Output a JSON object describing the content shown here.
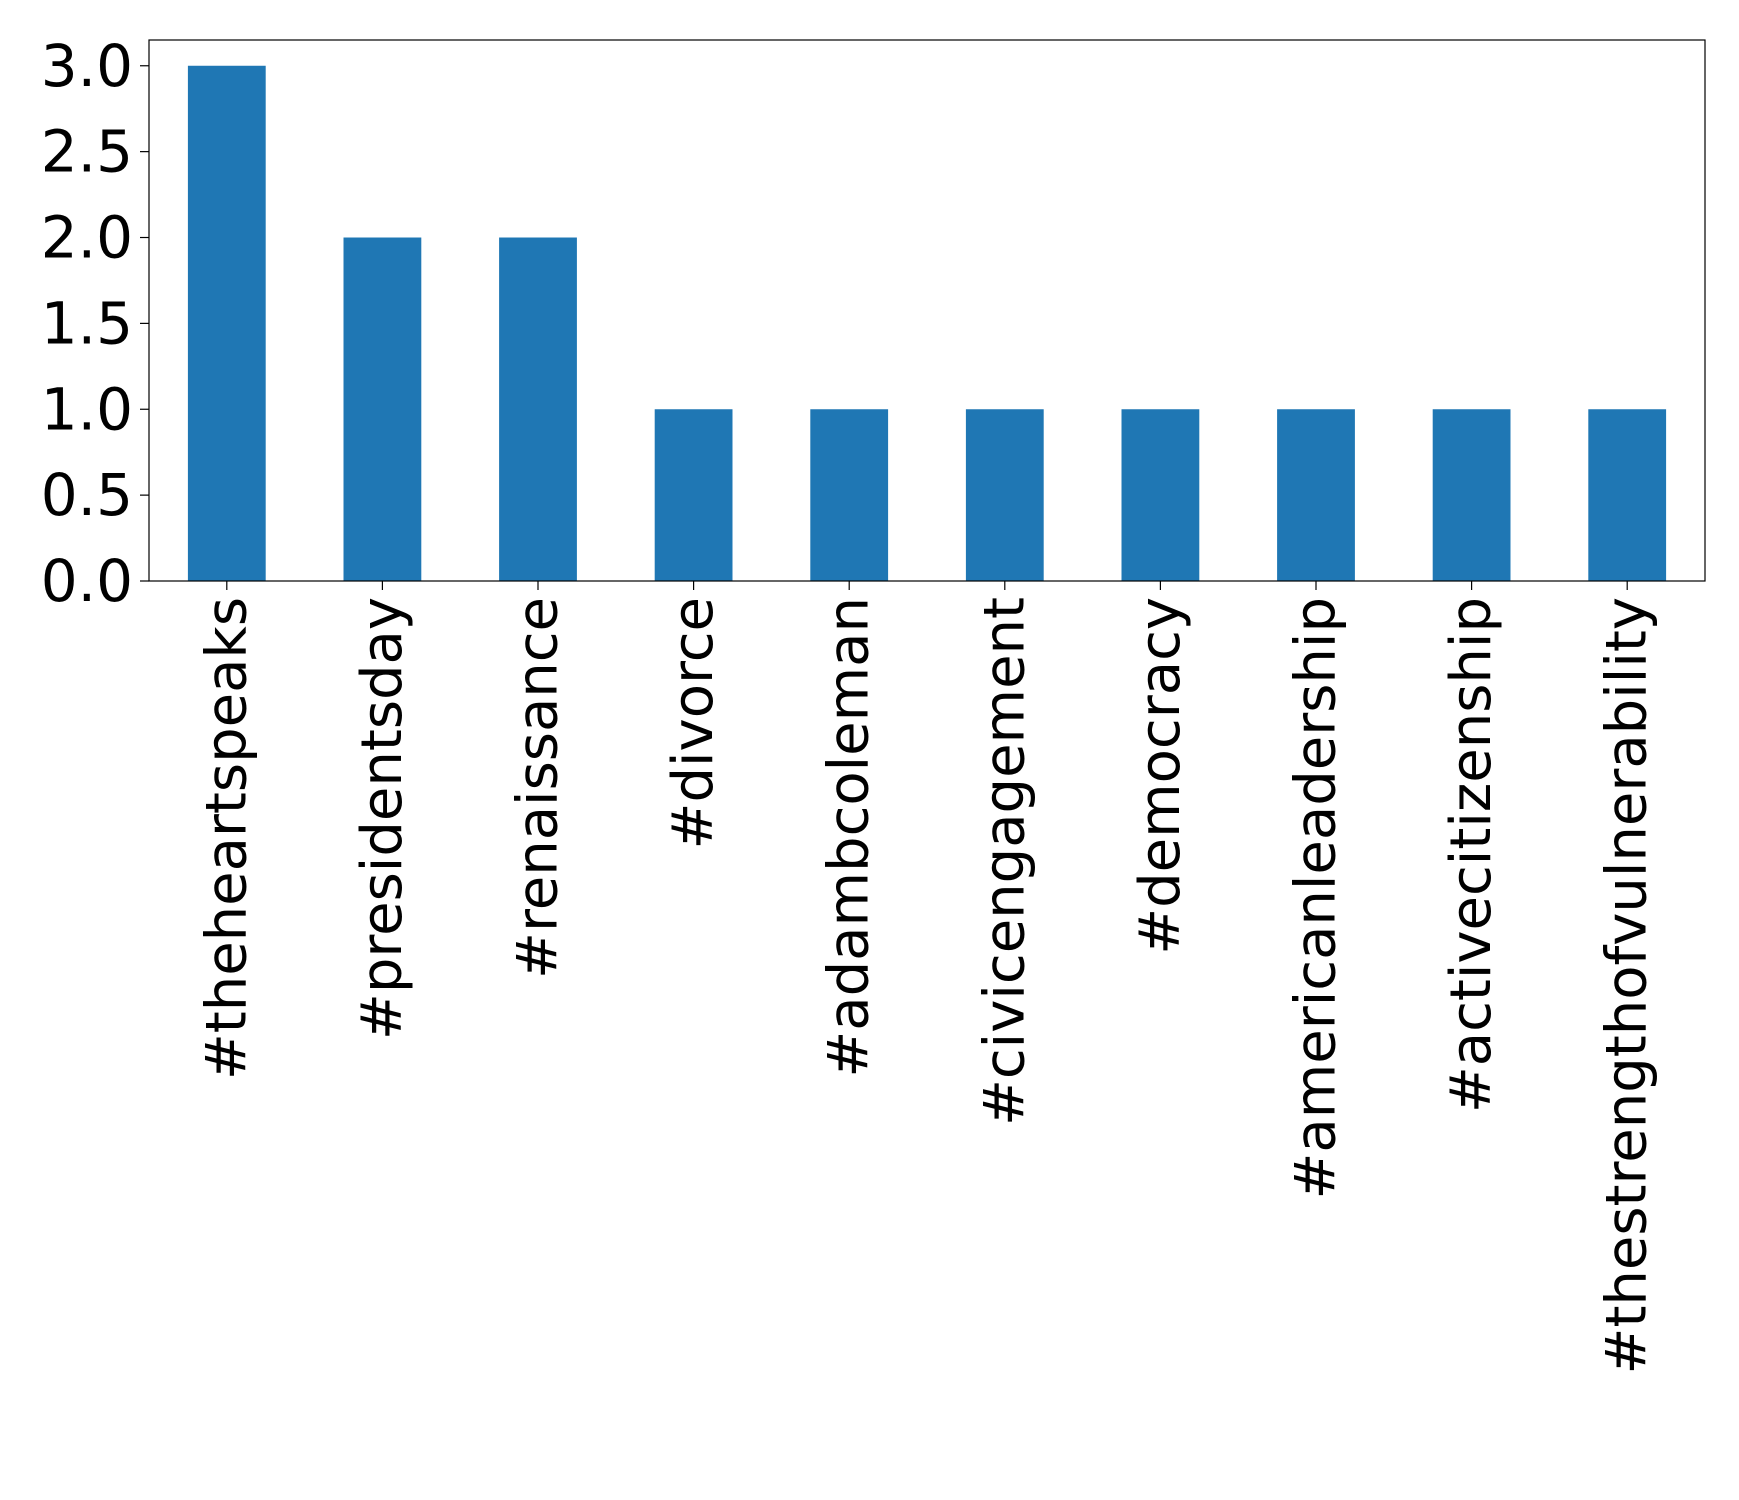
{
  "chart_data": {
    "type": "bar",
    "title": "",
    "xlabel": "",
    "ylabel": "",
    "categories": [
      "#theheartspeaks",
      "#presidentsday",
      "#renaissance",
      "#divorce",
      "#adambcoleman",
      "#civicengagement",
      "#democracy",
      "#americanleadership",
      "#activecitizenship",
      "#thestrengthofvulnerability"
    ],
    "values": [
      3,
      2,
      2,
      1,
      1,
      1,
      1,
      1,
      1,
      1
    ],
    "ylim": [
      0,
      3.15
    ],
    "yticks": [
      0.0,
      0.5,
      1.0,
      1.5,
      2.0,
      2.5,
      3.0
    ],
    "ytick_labels": [
      "0.0",
      "0.5",
      "1.0",
      "1.5",
      "2.0",
      "2.5",
      "3.0"
    ],
    "grid": false,
    "legend": "none",
    "colors": {
      "bar": "#1f77b4",
      "axis": "#000000",
      "background": "#ffffff"
    }
  }
}
